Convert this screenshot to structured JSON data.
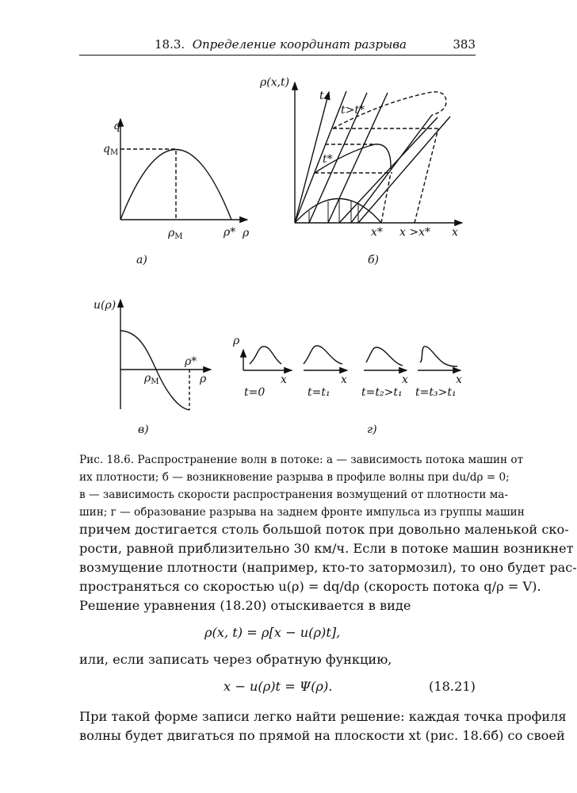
{
  "header": {
    "section": "18.3.",
    "title": "Определение координат разрыва",
    "page_number": "383"
  },
  "figure": {
    "a": {
      "panel": "а)",
      "y_axis": "q",
      "q_max": "q",
      "q_max_sub": "М",
      "rho_m": "ρ",
      "rho_m_sub": "М",
      "rho_star": "ρ*",
      "x_axis": "ρ"
    },
    "b": {
      "panel": "б)",
      "y_axis": "ρ(x,t)",
      "t_axis": "t",
      "t_after": "t>t*",
      "t_star": "t*",
      "x_star": "x*",
      "x_after": "x >x*",
      "x_axis": "x"
    },
    "v": {
      "panel": "в)",
      "y_axis": "u(ρ)",
      "rho_m": "ρ",
      "rho_m_sub": "М",
      "rho_star": "ρ*",
      "x_axis": "ρ"
    },
    "g": {
      "panel": "г)",
      "y_axis": "ρ",
      "x_axis": "x",
      "labels": [
        "t=0",
        "t=t₁",
        "t=t₂>t₁",
        "t=t₃>t₁"
      ]
    }
  },
  "caption": [
    "Рис. 18.6. Распространение волн в потоке: а — зависимость потока машин от",
    "их плотности; б — возникновение разрыва в профиле волны при du/dρ = 0;",
    "в — зависимость скорости распространения возмущений от плотности ма-",
    "шин; г — образование разрыва на заднем фронте импульса из группы машин"
  ],
  "paragraph1": [
    "причем достигается столь большой поток при довольно маленькой ско-",
    "рости, равной приблизительно 30 км/ч. Если в потоке машин возникнет",
    "возмущение плотности (например, кто-то затормозил), то оно будет рас-",
    "пространяться со скоростью u(ρ) = dq/dρ (скорость потока q/ρ = V).",
    "Решение уравнения (18.20) отыскивается в виде"
  ],
  "equation1": "ρ(x, t) = ρ[x − u(ρ)t],",
  "connector": "или, если записать через обратную функцию,",
  "equation2": "x − u(ρ)t = Ψ(ρ).",
  "equation2_number": "(18.21)",
  "paragraph2": [
    "При такой форме записи легко найти решение: каждая точка профиля",
    "волны будет двигаться по прямой на плоскости xt (рис. 18.6б) со своей"
  ]
}
